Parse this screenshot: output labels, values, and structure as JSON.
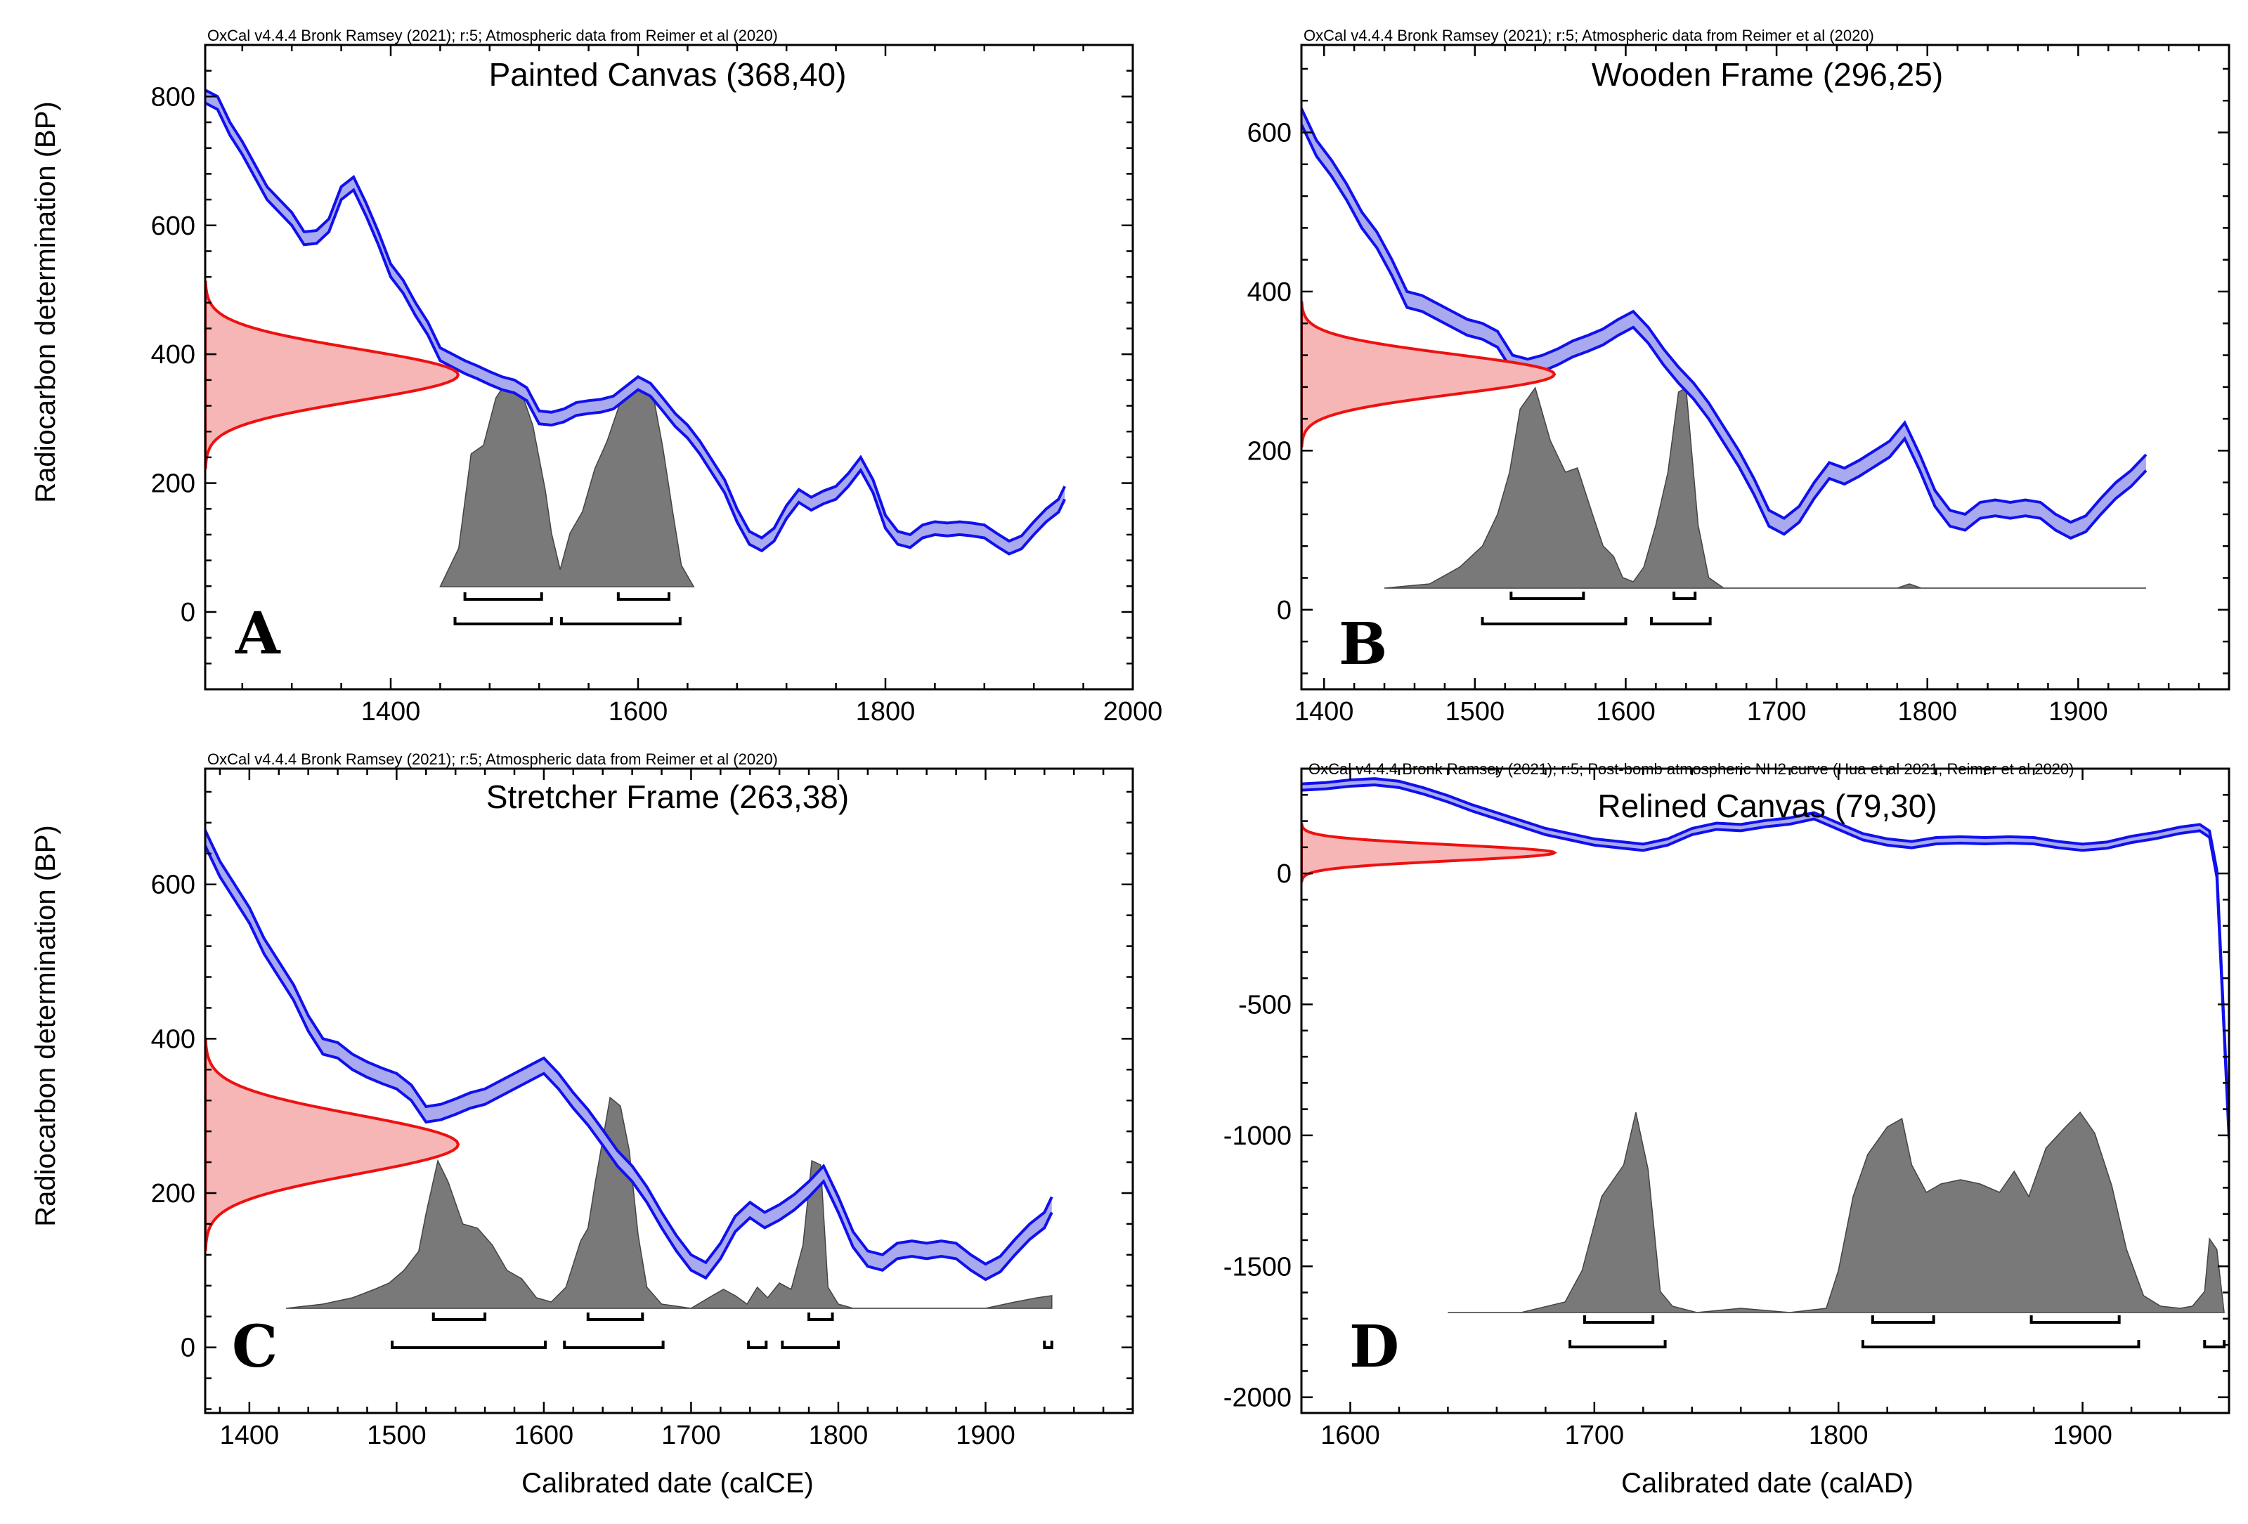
{
  "y_axis_label": "Radiocarbon determination (BP)",
  "colors": {
    "curve_fill": "#a9a9f0",
    "curve_line": "#1010ee",
    "measure_fill": "#f6b6b6",
    "measure_line": "#ee1111",
    "posterior_fill": "#6e6e6e",
    "frame": "#000000"
  },
  "chart_data": [
    {
      "type": "area",
      "panel_letter": "A",
      "title": "Painted Canvas (368,40)",
      "credit": "OxCal v4.4.4 Bronk Ramsey (2021); r:5; Atmospheric data from Reimer et al (2020)",
      "xlabel": "",
      "ylabel": "Radiocarbon determination (BP)",
      "xlim": [
        1250,
        2000
      ],
      "ylim": [
        -120,
        880
      ],
      "x_ticks": [
        1400,
        1600,
        1800,
        2000
      ],
      "y_ticks": [
        0,
        200,
        400,
        600,
        800
      ],
      "measurement": {
        "mean": 368,
        "sd": 40
      },
      "calibration_curve": {
        "x": [
          1250,
          1260,
          1270,
          1280,
          1290,
          1300,
          1310,
          1320,
          1330,
          1340,
          1350,
          1360,
          1370,
          1380,
          1390,
          1400,
          1410,
          1420,
          1430,
          1440,
          1450,
          1460,
          1470,
          1480,
          1490,
          1500,
          1510,
          1520,
          1530,
          1540,
          1550,
          1560,
          1570,
          1580,
          1590,
          1600,
          1610,
          1620,
          1630,
          1640,
          1650,
          1660,
          1670,
          1680,
          1690,
          1700,
          1710,
          1720,
          1730,
          1740,
          1750,
          1760,
          1770,
          1780,
          1790,
          1800,
          1810,
          1820,
          1830,
          1840,
          1850,
          1860,
          1870,
          1880,
          1890,
          1900,
          1910,
          1920,
          1930,
          1940,
          1945
        ],
        "bp": [
          800,
          790,
          750,
          720,
          685,
          650,
          630,
          610,
          580,
          582,
          600,
          650,
          665,
          625,
          580,
          530,
          505,
          470,
          440,
          400,
          390,
          380,
          372,
          363,
          355,
          350,
          338,
          302,
          300,
          305,
          315,
          318,
          320,
          325,
          340,
          355,
          345,
          322,
          298,
          280,
          255,
          225,
          195,
          150,
          115,
          105,
          120,
          155,
          180,
          168,
          178,
          185,
          205,
          230,
          195,
          140,
          115,
          110,
          125,
          130,
          128,
          130,
          128,
          125,
          112,
          100,
          108,
          130,
          150,
          165,
          185
        ],
        "sigma": 10
      },
      "posterior_distribution": {
        "x": [
          1440,
          1455,
          1465,
          1475,
          1485,
          1495,
          1505,
          1515,
          1525,
          1530,
          1537,
          1545,
          1555,
          1565,
          1575,
          1585,
          1595,
          1605,
          1612,
          1620,
          1628,
          1635,
          1645
        ],
        "y": [
          0,
          0.18,
          0.62,
          0.66,
          0.88,
          0.97,
          0.92,
          0.75,
          0.45,
          0.25,
          0.08,
          0.25,
          0.35,
          0.55,
          0.68,
          0.85,
          0.9,
          0.97,
          0.9,
          0.65,
          0.35,
          0.1,
          0
        ]
      },
      "ranges_68": [
        [
          1460,
          1522
        ],
        [
          1584,
          1625
        ]
      ],
      "ranges_95": [
        [
          1452,
          1530
        ],
        [
          1538,
          1634
        ]
      ]
    },
    {
      "type": "area",
      "panel_letter": "B",
      "title": "Wooden Frame (296,25)",
      "credit": "OxCal v4.4.4 Bronk Ramsey (2021); r:5; Atmospheric data from Reimer et al (2020)",
      "xlabel": "",
      "ylabel": "",
      "xlim": [
        1385,
        2000
      ],
      "ylim": [
        -100,
        710
      ],
      "x_ticks": [
        1400,
        1500,
        1600,
        1700,
        1800,
        1900
      ],
      "y_ticks": [
        0,
        200,
        400,
        600
      ],
      "measurement": {
        "mean": 296,
        "sd": 25
      },
      "calibration_curve": {
        "x": [
          1385,
          1395,
          1405,
          1415,
          1425,
          1435,
          1445,
          1455,
          1465,
          1475,
          1485,
          1495,
          1505,
          1515,
          1525,
          1535,
          1545,
          1555,
          1565,
          1575,
          1585,
          1595,
          1605,
          1615,
          1625,
          1635,
          1645,
          1655,
          1665,
          1675,
          1685,
          1695,
          1705,
          1715,
          1725,
          1735,
          1745,
          1755,
          1765,
          1775,
          1785,
          1795,
          1805,
          1815,
          1825,
          1835,
          1845,
          1855,
          1865,
          1875,
          1885,
          1895,
          1905,
          1915,
          1925,
          1935,
          1945
        ],
        "bp": [
          620,
          580,
          555,
          525,
          490,
          465,
          430,
          390,
          385,
          375,
          365,
          355,
          350,
          340,
          310,
          305,
          310,
          318,
          328,
          335,
          343,
          355,
          365,
          345,
          318,
          295,
          275,
          250,
          220,
          190,
          155,
          115,
          105,
          120,
          150,
          175,
          168,
          178,
          190,
          202,
          225,
          185,
          140,
          115,
          110,
          125,
          128,
          125,
          128,
          125,
          110,
          100,
          108,
          130,
          150,
          165,
          185
        ],
        "sigma": 10
      },
      "posterior_distribution": {
        "x": [
          1440,
          1470,
          1490,
          1505,
          1515,
          1523,
          1530,
          1540,
          1550,
          1560,
          1568,
          1578,
          1585,
          1592,
          1598,
          1605,
          1612,
          1620,
          1628,
          1635,
          1640,
          1648,
          1655,
          1665,
          1780,
          1788,
          1796,
          1945
        ],
        "y": [
          0,
          0.02,
          0.1,
          0.2,
          0.35,
          0.55,
          0.85,
          0.95,
          0.7,
          0.55,
          0.57,
          0.35,
          0.2,
          0.15,
          0.05,
          0.03,
          0.1,
          0.3,
          0.55,
          0.93,
          0.95,
          0.3,
          0.05,
          0,
          0,
          0.02,
          0,
          0
        ]
      },
      "ranges_68": [
        [
          1524,
          1572
        ],
        [
          1632,
          1646
        ]
      ],
      "ranges_95": [
        [
          1505,
          1600
        ],
        [
          1617,
          1656
        ]
      ]
    },
    {
      "type": "area",
      "panel_letter": "C",
      "title": "Stretcher Frame (263,38)",
      "credit": "OxCal v4.4.4 Bronk Ramsey (2021); r:5; Atmospheric data from Reimer et al (2020)",
      "xlabel": "Calibrated date (calCE)",
      "ylabel": "Radiocarbon determination (BP)",
      "xlim": [
        1370,
        2000
      ],
      "ylim": [
        -85,
        750
      ],
      "x_ticks": [
        1400,
        1500,
        1600,
        1700,
        1800,
        1900
      ],
      "y_ticks": [
        0,
        200,
        400,
        600
      ],
      "measurement": {
        "mean": 263,
        "sd": 38
      },
      "calibration_curve": {
        "x": [
          1370,
          1380,
          1390,
          1400,
          1410,
          1420,
          1430,
          1440,
          1450,
          1460,
          1470,
          1480,
          1490,
          1500,
          1510,
          1520,
          1530,
          1540,
          1550,
          1560,
          1570,
          1580,
          1590,
          1600,
          1610,
          1620,
          1630,
          1640,
          1650,
          1660,
          1670,
          1680,
          1690,
          1700,
          1710,
          1720,
          1730,
          1740,
          1750,
          1760,
          1770,
          1780,
          1790,
          1800,
          1810,
          1820,
          1830,
          1840,
          1850,
          1860,
          1870,
          1880,
          1890,
          1900,
          1910,
          1920,
          1930,
          1940,
          1945
        ],
        "bp": [
          660,
          620,
          590,
          560,
          520,
          490,
          460,
          420,
          390,
          385,
          370,
          360,
          352,
          345,
          330,
          302,
          305,
          312,
          320,
          325,
          335,
          345,
          355,
          365,
          345,
          320,
          298,
          272,
          245,
          225,
          198,
          165,
          135,
          110,
          100,
          125,
          160,
          178,
          165,
          175,
          188,
          205,
          225,
          185,
          140,
          115,
          110,
          125,
          128,
          125,
          128,
          125,
          110,
          98,
          108,
          130,
          150,
          165,
          185
        ],
        "sigma": 10
      },
      "posterior_distribution": {
        "x": [
          1425,
          1450,
          1470,
          1485,
          1495,
          1505,
          1515,
          1520,
          1528,
          1535,
          1545,
          1555,
          1565,
          1575,
          1585,
          1595,
          1605,
          1615,
          1625,
          1630,
          1635,
          1640,
          1645,
          1652,
          1658,
          1664,
          1670,
          1680,
          1700,
          1712,
          1722,
          1730,
          1738,
          1745,
          1752,
          1760,
          1768,
          1776,
          1782,
          1788,
          1793,
          1800,
          1810,
          1900,
          1920,
          1935,
          1945
        ],
        "y": [
          0,
          0.02,
          0.05,
          0.09,
          0.12,
          0.18,
          0.27,
          0.45,
          0.7,
          0.6,
          0.4,
          0.38,
          0.3,
          0.18,
          0.14,
          0.05,
          0.03,
          0.1,
          0.32,
          0.38,
          0.6,
          0.8,
          1.0,
          0.96,
          0.75,
          0.35,
          0.1,
          0.02,
          0,
          0.05,
          0.09,
          0.06,
          0.02,
          0.1,
          0.05,
          0.12,
          0.09,
          0.3,
          0.7,
          0.68,
          0.1,
          0.02,
          0,
          0,
          0.03,
          0.05,
          0.06
        ]
      },
      "ranges_68": [
        [
          1525,
          1560
        ],
        [
          1630,
          1667
        ],
        [
          1780,
          1796
        ]
      ],
      "ranges_95": [
        [
          1497,
          1601
        ],
        [
          1614,
          1681
        ],
        [
          1739,
          1751
        ],
        [
          1762,
          1800
        ],
        [
          1940,
          1945
        ]
      ]
    },
    {
      "type": "area",
      "panel_letter": "D",
      "title": "Relined Canvas (79,30)",
      "credit": "OxCal v4.4.4 Bronk Ramsey (2021); r:5; Post-bomb atmospheric NH2 curve (Hua et al 2021, Reimer et al 2020)",
      "xlabel": "Calibrated date (calAD)",
      "ylabel": "",
      "xlim": [
        1580,
        1960
      ],
      "ylim": [
        -2060,
        400
      ],
      "x_ticks": [
        1600,
        1700,
        1800,
        1900
      ],
      "y_ticks": [
        0,
        -500,
        -1000,
        -1500,
        -2000
      ],
      "measurement": {
        "mean": 79,
        "sd": 30
      },
      "calibration_curve": {
        "x": [
          1580,
          1590,
          1600,
          1610,
          1620,
          1630,
          1640,
          1650,
          1660,
          1670,
          1680,
          1690,
          1700,
          1710,
          1720,
          1730,
          1740,
          1750,
          1760,
          1770,
          1780,
          1790,
          1800,
          1810,
          1820,
          1830,
          1840,
          1850,
          1860,
          1870,
          1880,
          1890,
          1900,
          1910,
          1920,
          1930,
          1940,
          1948,
          1952,
          1955,
          1958,
          1960
        ],
        "bp": [
          330,
          335,
          345,
          350,
          340,
          315,
          285,
          250,
          220,
          190,
          160,
          140,
          120,
          110,
          100,
          120,
          160,
          180,
          175,
          190,
          200,
          220,
          180,
          140,
          120,
          110,
          125,
          128,
          125,
          128,
          125,
          110,
          100,
          108,
          130,
          145,
          165,
          175,
          150,
          0,
          -600,
          -1000
        ],
        "sigma": 12
      },
      "posterior_distribution": {
        "x": [
          1640,
          1670,
          1688,
          1695,
          1703,
          1712,
          1717,
          1722,
          1727,
          1732,
          1742,
          1760,
          1780,
          1795,
          1800,
          1806,
          1812,
          1820,
          1826,
          1830,
          1836,
          1842,
          1850,
          1858,
          1866,
          1872,
          1878,
          1885,
          1893,
          1899,
          1905,
          1912,
          1918,
          1925,
          1932,
          1940,
          1945,
          1950,
          1952,
          1955,
          1958
        ],
        "y": [
          0,
          0.0,
          0.05,
          0.2,
          0.55,
          0.7,
          0.95,
          0.68,
          0.1,
          0.03,
          0.0,
          0.02,
          0.0,
          0.02,
          0.2,
          0.55,
          0.75,
          0.88,
          0.92,
          0.7,
          0.57,
          0.61,
          0.63,
          0.61,
          0.57,
          0.67,
          0.55,
          0.78,
          0.88,
          0.95,
          0.85,
          0.6,
          0.3,
          0.08,
          0.03,
          0.02,
          0.03,
          0.1,
          0.35,
          0.3,
          0
        ]
      },
      "ranges_68": [
        [
          1696,
          1724
        ],
        [
          1814,
          1839
        ],
        [
          1879,
          1915
        ]
      ],
      "ranges_95": [
        [
          1690,
          1729
        ],
        [
          1810,
          1923
        ],
        [
          1950,
          1958
        ]
      ]
    }
  ]
}
